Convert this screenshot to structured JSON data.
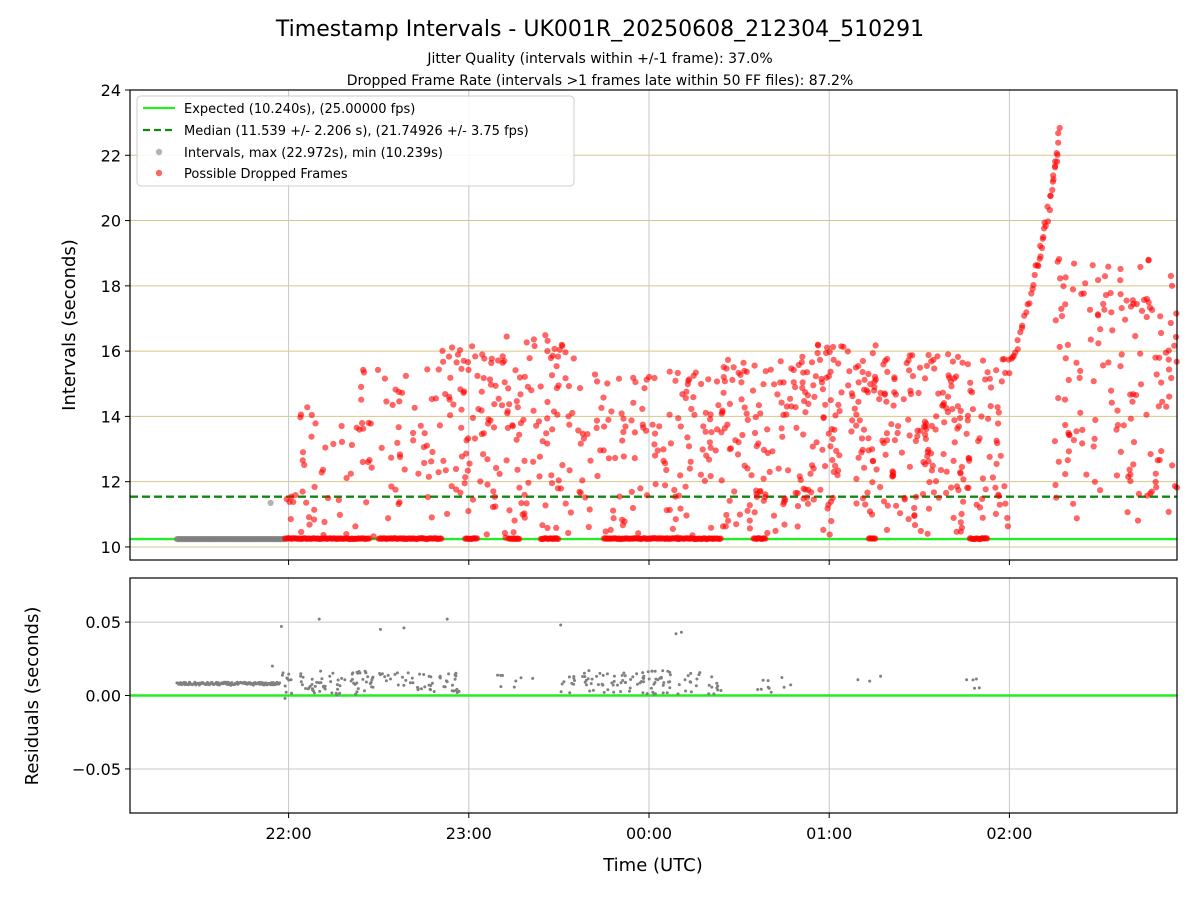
{
  "chart_data": [
    {
      "type": "scatter",
      "title": "Timestamp Intervals - UK001R_20250608_212304_510291",
      "subtitle_lines": [
        "Jitter Quality (intervals within +/-1 frame): 37.0%",
        "Dropped Frame Rate (intervals >1 frames late within 50 FF files): 87.2%"
      ],
      "ylabel": "Intervals (seconds)",
      "ylim": [
        9.6,
        24.0
      ],
      "yticks": [
        10,
        12,
        14,
        16,
        18,
        20,
        22,
        24
      ],
      "ytick_labels": [
        "10",
        "12",
        "14",
        "16",
        "18",
        "20",
        "22",
        "24"
      ],
      "xlim_hours": [
        21.12,
        26.93
      ],
      "xticks_hours": [
        22,
        23,
        24,
        25,
        26
      ],
      "xtick_labels": [
        "22:00",
        "23:00",
        "00:00",
        "01:00",
        "02:00"
      ],
      "grid": true,
      "legend_position": "upper-left",
      "reference_lines": [
        {
          "name": "Expected (10.240s), (25.00000 fps)",
          "y": 10.24,
          "style": "solid",
          "color": "#22ee22"
        },
        {
          "name": "Median (11.539 +/- 2.206 s), (21.74926 +/- 3.75 fps)",
          "y": 11.539,
          "style": "dashed",
          "color": "#118811"
        }
      ],
      "series": [
        {
          "name": "Intervals, max (22.972s), min (10.239s)",
          "color": "#808080",
          "marker": "circle"
        },
        {
          "name": "Possible Dropped Frames",
          "color": "#ff0000",
          "marker": "circle"
        }
      ],
      "extra_points": [
        {
          "x": 21.9,
          "y": 11.35,
          "series": 0
        }
      ],
      "normal_band": {
        "x_start": 21.38,
        "x_end": 21.98,
        "y": 10.24
      },
      "dropped_clusters": [
        {
          "x_start": 21.98,
          "x_end": 22.05,
          "y_min": 10.8,
          "y_max": 11.6,
          "count": 6
        },
        {
          "x_start": 22.05,
          "x_end": 22.4,
          "y_min": 10.24,
          "y_max": 14.3,
          "count": 35
        },
        {
          "x_start": 22.4,
          "x_end": 22.85,
          "y_min": 10.24,
          "y_max": 15.6,
          "count": 55
        },
        {
          "x_start": 22.85,
          "x_end": 23.2,
          "y_min": 10.24,
          "y_max": 16.2,
          "count": 80
        },
        {
          "x_start": 23.2,
          "x_end": 23.6,
          "y_min": 10.24,
          "y_max": 16.6,
          "count": 90
        },
        {
          "x_start": 23.6,
          "x_end": 24.0,
          "y_min": 10.24,
          "y_max": 15.3,
          "count": 60
        },
        {
          "x_start": 24.0,
          "x_end": 24.4,
          "y_min": 10.24,
          "y_max": 15.5,
          "count": 70
        },
        {
          "x_start": 24.4,
          "x_end": 24.85,
          "y_min": 10.24,
          "y_max": 15.8,
          "count": 110
        },
        {
          "x_start": 24.85,
          "x_end": 25.3,
          "y_min": 10.3,
          "y_max": 16.2,
          "count": 130
        },
        {
          "x_start": 25.3,
          "x_end": 25.8,
          "y_min": 10.24,
          "y_max": 16.0,
          "count": 150
        },
        {
          "x_start": 25.8,
          "x_end": 26.0,
          "y_min": 10.6,
          "y_max": 15.8,
          "count": 40
        },
        {
          "x_start": 26.25,
          "x_end": 26.93,
          "y_min": 10.8,
          "y_max": 18.9,
          "count": 150
        }
      ],
      "dropped_ramp": [
        {
          "x": 26.0,
          "y": 15.6
        },
        {
          "x": 26.05,
          "y": 16.3
        },
        {
          "x": 26.1,
          "y": 17.3
        },
        {
          "x": 26.15,
          "y": 18.5
        },
        {
          "x": 26.18,
          "y": 19.2
        },
        {
          "x": 26.21,
          "y": 20.1
        },
        {
          "x": 26.24,
          "y": 21.2
        },
        {
          "x": 26.26,
          "y": 21.8
        },
        {
          "x": 26.28,
          "y": 22.97
        }
      ],
      "dropped_baseline": [
        {
          "x_start": 21.98,
          "x_end": 22.45
        },
        {
          "x_start": 22.5,
          "x_end": 22.85
        },
        {
          "x_start": 22.98,
          "x_end": 23.05
        },
        {
          "x_start": 23.22,
          "x_end": 23.28
        },
        {
          "x_start": 23.4,
          "x_end": 23.5
        },
        {
          "x_start": 23.75,
          "x_end": 24.4
        },
        {
          "x_start": 24.58,
          "x_end": 24.65
        },
        {
          "x_start": 25.22,
          "x_end": 25.26
        },
        {
          "x_start": 25.78,
          "x_end": 25.88
        }
      ]
    },
    {
      "type": "scatter",
      "ylabel": "Residuals (seconds)",
      "xlabel": "Time (UTC)",
      "ylim": [
        -0.08,
        0.08
      ],
      "yticks": [
        -0.05,
        0.0,
        0.05
      ],
      "ytick_labels": [
        "−0.05",
        "0.00",
        "0.05"
      ],
      "xlim_hours": [
        21.12,
        26.93
      ],
      "xticks_hours": [
        22,
        23,
        24,
        25,
        26
      ],
      "xtick_labels": [
        "22:00",
        "23:00",
        "00:00",
        "01:00",
        "02:00"
      ],
      "grid": true,
      "zero_line": {
        "y": 0.0,
        "color": "#22ee22"
      },
      "series": [
        {
          "name": "Residuals",
          "color": "#808080",
          "marker": "point"
        }
      ],
      "baseline_band": {
        "x_start": 21.38,
        "x_end": 21.95,
        "y": 0.008
      },
      "clusters": [
        {
          "x_start": 21.95,
          "x_end": 22.45,
          "y_min": 0.0,
          "y_max": 0.017,
          "count": 70
        },
        {
          "x_start": 22.45,
          "x_end": 22.95,
          "y_min": 0.002,
          "y_max": 0.016,
          "count": 60
        },
        {
          "x_start": 23.1,
          "x_end": 23.4,
          "y_min": 0.004,
          "y_max": 0.014,
          "count": 8
        },
        {
          "x_start": 23.5,
          "x_end": 24.4,
          "y_min": 0.001,
          "y_max": 0.017,
          "count": 110
        },
        {
          "x_start": 24.55,
          "x_end": 24.8,
          "y_min": 0.002,
          "y_max": 0.013,
          "count": 10
        },
        {
          "x_start": 25.1,
          "x_end": 25.3,
          "y_min": 0.004,
          "y_max": 0.014,
          "count": 3
        },
        {
          "x_start": 25.75,
          "x_end": 25.87,
          "y_min": 0.004,
          "y_max": 0.014,
          "count": 5
        }
      ],
      "outliers": [
        {
          "x": 21.96,
          "y": 0.047
        },
        {
          "x": 22.17,
          "y": 0.052
        },
        {
          "x": 22.51,
          "y": 0.045
        },
        {
          "x": 22.64,
          "y": 0.046
        },
        {
          "x": 22.88,
          "y": 0.052
        },
        {
          "x": 23.51,
          "y": 0.048
        },
        {
          "x": 24.15,
          "y": 0.042
        },
        {
          "x": 24.18,
          "y": 0.043
        },
        {
          "x": 21.91,
          "y": 0.02
        },
        {
          "x": 21.98,
          "y": -0.002
        }
      ]
    }
  ]
}
